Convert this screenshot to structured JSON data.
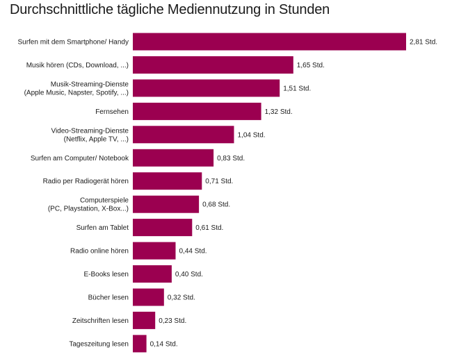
{
  "chart_data": {
    "type": "bar",
    "orientation": "horizontal",
    "title": "Durchschnittliche tägliche Mediennutzung in Stunden",
    "categories": [
      [
        "Surfen mit dem Smartphone/ Handy"
      ],
      [
        "Musik hören (CDs, Download, ...)"
      ],
      [
        "Musik-Streaming-Dienste",
        "(Apple Music, Napster, Spotify, ...)"
      ],
      [
        "Fernsehen"
      ],
      [
        "Video-Streaming-Dienste",
        "(Netflix, Apple TV, ...)"
      ],
      [
        "Surfen am Computer/ Notebook"
      ],
      [
        "Radio per Radiogerät hören"
      ],
      [
        "Computerspiele",
        "(PC, Playstation, X-Box...)"
      ],
      [
        "Surfen am Tablet"
      ],
      [
        "Radio online hören"
      ],
      [
        "E-Books lesen"
      ],
      [
        "Bücher lesen"
      ],
      [
        "Zeitschriften lesen"
      ],
      [
        "Tageszeitung lesen"
      ]
    ],
    "values": [
      2.81,
      1.65,
      1.51,
      1.32,
      1.04,
      0.83,
      0.71,
      0.68,
      0.61,
      0.44,
      0.4,
      0.32,
      0.23,
      0.14
    ],
    "value_labels": [
      "2,81 Std.",
      "1,65 Std.",
      "1,51 Std.",
      "1,32 Std.",
      "1,04 Std.",
      "0,83 Std.",
      "0,71 Std.",
      "0,68 Std.",
      "0,61 Std.",
      "0,44 Std.",
      "0,40 Std.",
      "0,32 Std.",
      "0,23 Std.",
      "0,14 Std."
    ],
    "bar_color": "#9b0050",
    "xlim": [
      0,
      2.81
    ],
    "grid": false,
    "legend": "none"
  }
}
